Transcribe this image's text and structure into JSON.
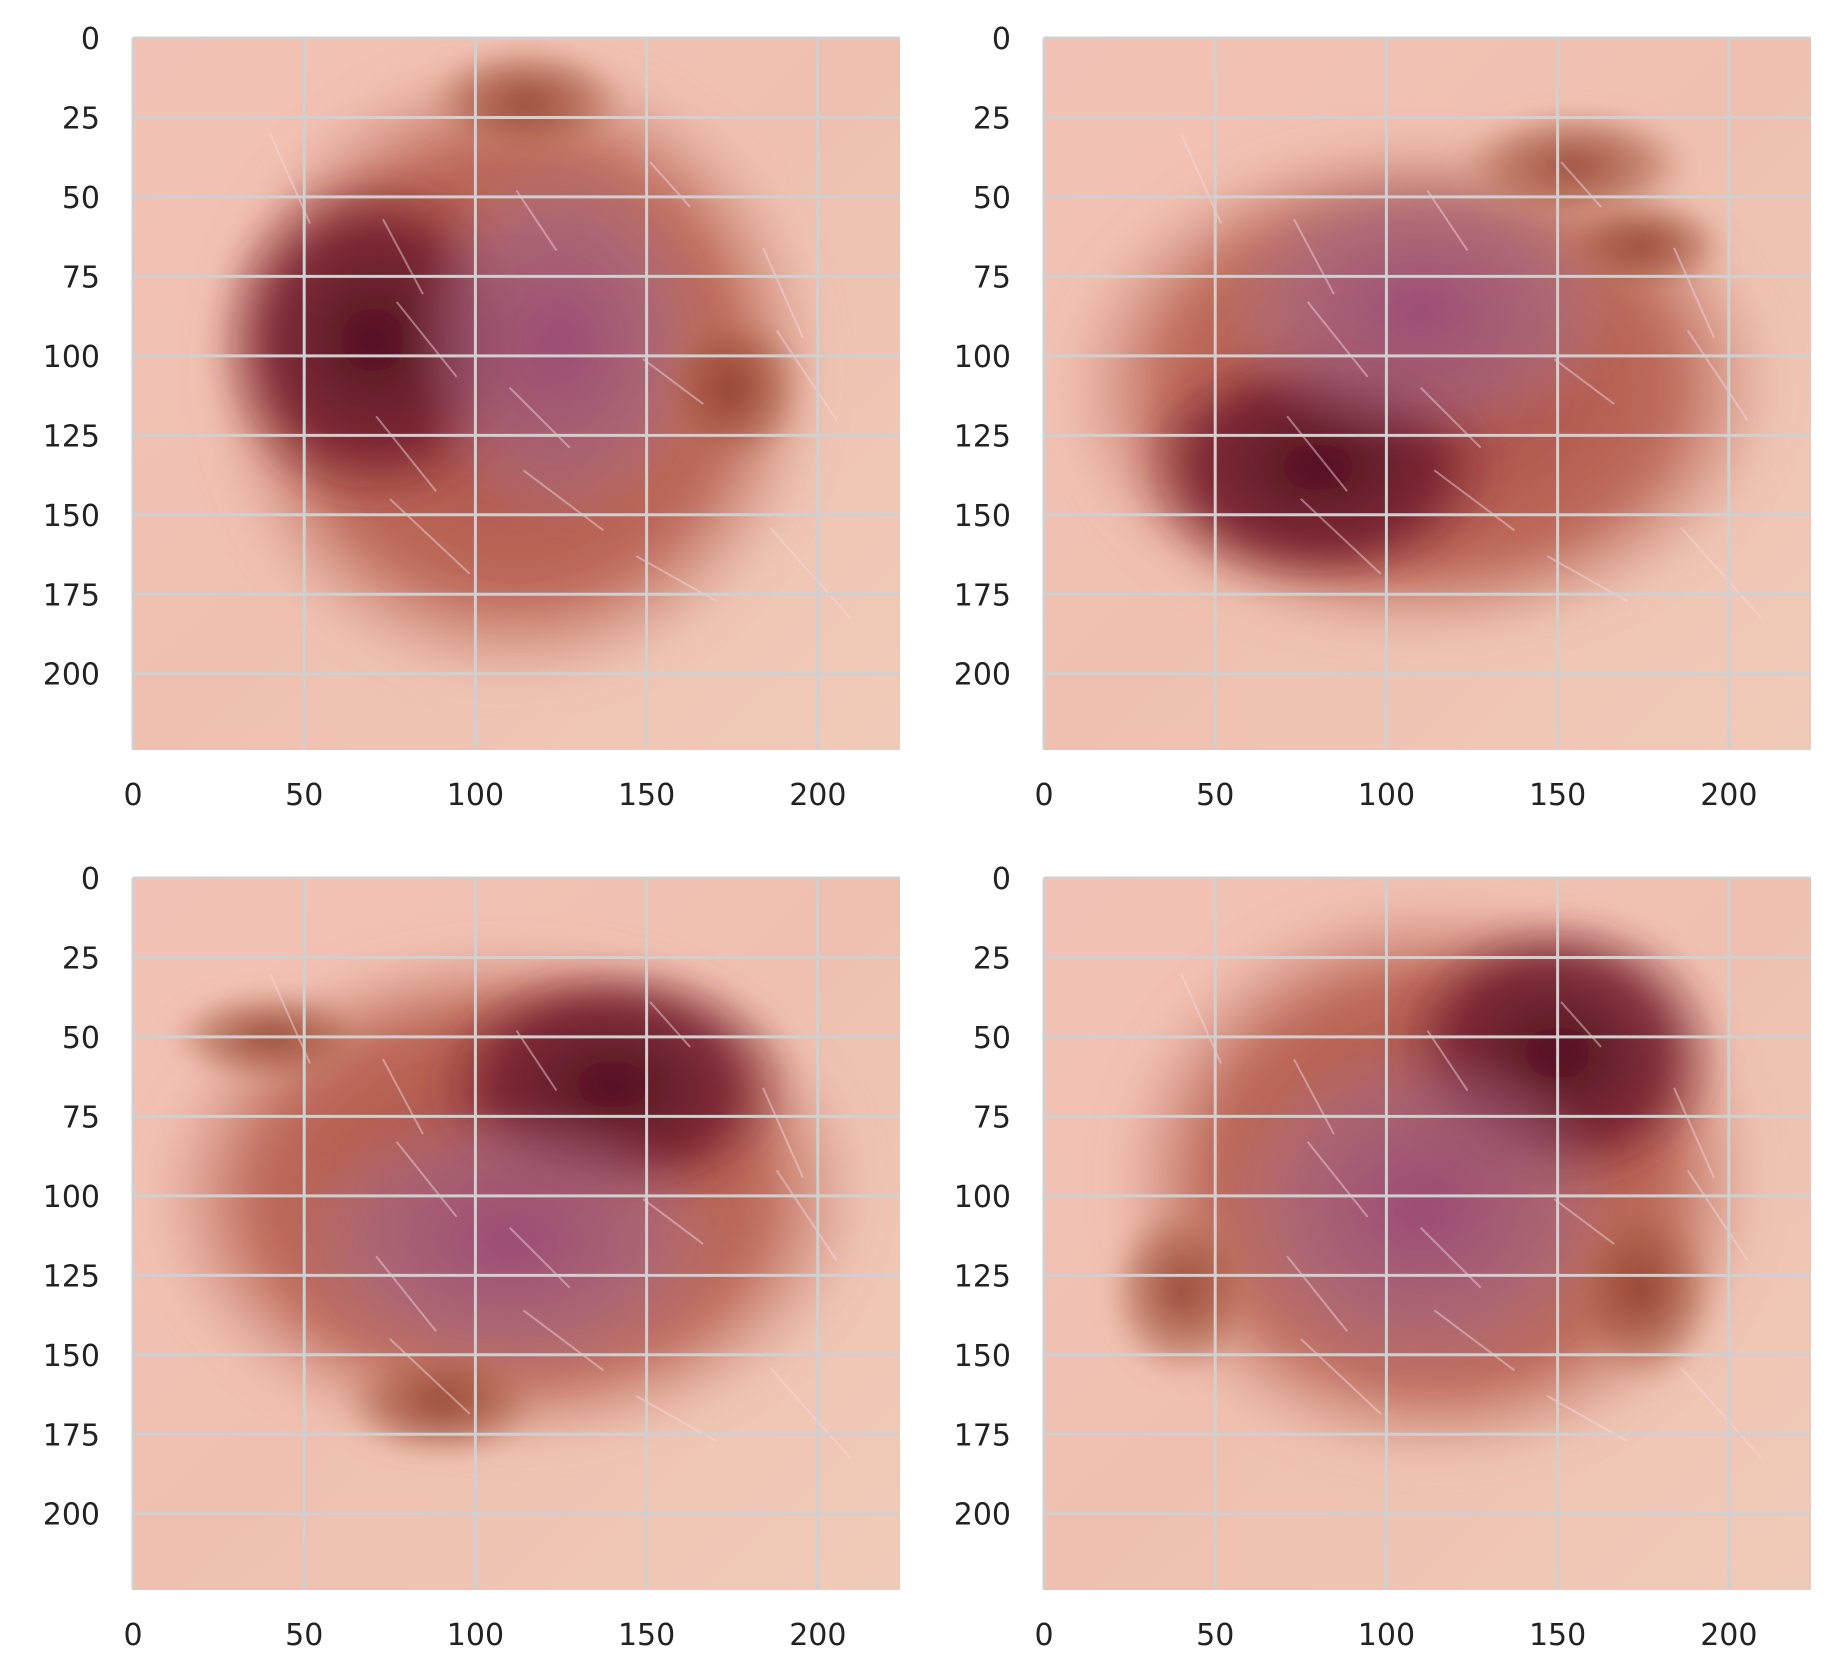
{
  "figure": {
    "panel_count": 4,
    "image_extent": [
      0,
      224
    ],
    "x_ticks": [
      "0",
      "50",
      "100",
      "150",
      "200"
    ],
    "y_ticks": [
      "0",
      "25",
      "50",
      "75",
      "100",
      "125",
      "150",
      "175",
      "200"
    ],
    "grid": true,
    "grid_color": "#d0d0d0",
    "panels": [
      {
        "name": "panel-top-left",
        "image": "dermoscopic-lesion-augmentation-1"
      },
      {
        "name": "panel-top-right",
        "image": "dermoscopic-lesion-augmentation-2"
      },
      {
        "name": "panel-bottom-left",
        "image": "dermoscopic-lesion-augmentation-3"
      },
      {
        "name": "panel-bottom-right",
        "image": "dermoscopic-lesion-augmentation-4"
      }
    ]
  }
}
